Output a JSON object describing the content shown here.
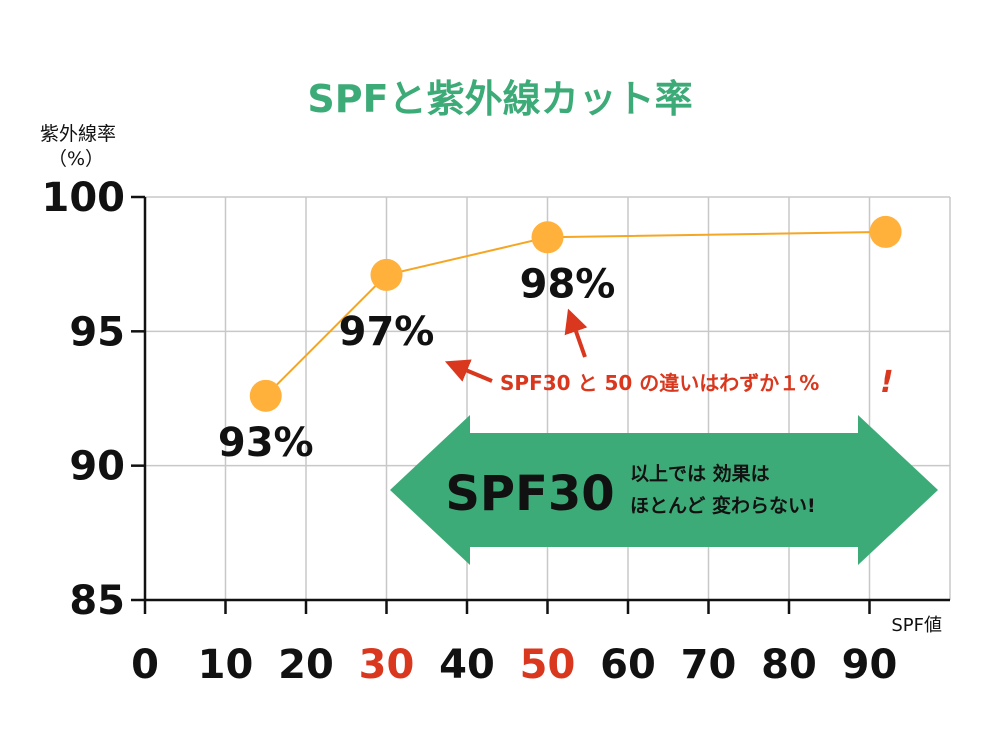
{
  "chart_data": {
    "type": "line",
    "title": "SPFと紫外線カット率",
    "ylabel_line1": "紫外線率",
    "ylabel_line2": "（%）",
    "xlabel": "SPF値",
    "xlim": [
      0,
      100
    ],
    "ylim": [
      85,
      100
    ],
    "x_ticks": [
      "0",
      "10",
      "20",
      "30",
      "40",
      "50",
      "60",
      "70",
      "80",
      "90"
    ],
    "x_ticks_highlighted": [
      "30",
      "50"
    ],
    "y_ticks": [
      "85",
      "90",
      "95",
      "100"
    ],
    "grid": true,
    "series": [
      {
        "points": [
          {
            "x": 15,
            "y": 92.6,
            "label": "93%"
          },
          {
            "x": 30,
            "y": 97.1,
            "label": "97%"
          },
          {
            "x": 50,
            "y": 98.5,
            "label": "98%"
          },
          {
            "x": 92,
            "y": 98.7,
            "label": ""
          }
        ],
        "color": "#ffb13b",
        "line_color": "#f5a623"
      }
    ],
    "annotation_note": "SPF30 と 50 の違いはわずか１%",
    "annotation_exclaim": "!",
    "banner": {
      "big": "SPF30",
      "line1": "以上では 効果は",
      "line2": "ほとんど 変わらない!"
    },
    "colors": {
      "title": "#3dab77",
      "banner": "#3dab77",
      "highlight": "#d9381e",
      "grid": "#c8c8c8"
    }
  }
}
